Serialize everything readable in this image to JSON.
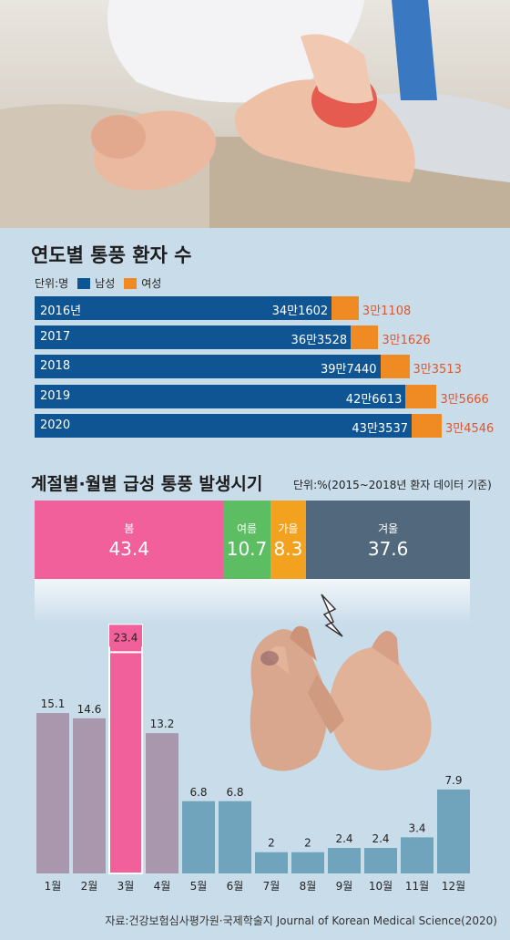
{
  "yearly": {
    "title": "연도별 통풍 환자 수",
    "unit": "단위:명",
    "legend": {
      "male": "남성",
      "female": "여성"
    },
    "colors": {
      "male": "#0f5593",
      "female": "#f08a22",
      "female_text": "#e1562a"
    },
    "rows": [
      {
        "year": "2016년",
        "male": "34만1602",
        "female": "3만1108"
      },
      {
        "year": "2017",
        "male": "36만3528",
        "female": "3만1626"
      },
      {
        "year": "2018",
        "male": "39만7440",
        "female": "3만3513"
      },
      {
        "year": "2019",
        "male": "42만6613",
        "female": "3만5666"
      },
      {
        "year": "2020",
        "male": "43만3537",
        "female": "3만4546"
      }
    ]
  },
  "seasonal": {
    "title": "계절별·월별 급성 통풍 발생시기",
    "unit": "단위:%(2015~2018년 환자 데이터 기준)",
    "seasons": [
      {
        "name": "봄",
        "value": "43.4",
        "color": "#f2609b"
      },
      {
        "name": "여름",
        "value": "10.7",
        "color": "#5cbd63"
      },
      {
        "name": "가을",
        "value": "8.3",
        "color": "#f3a21f"
      },
      {
        "name": "겨울",
        "value": "37.6",
        "color": "#52697d"
      }
    ]
  },
  "source": "자료:건강보험심사평가원·국제학술지 Journal of Korean Medical Science(2020)",
  "chart_data": [
    {
      "type": "bar",
      "orientation": "horizontal",
      "stacked": true,
      "title": "연도별 통풍 환자 수",
      "unit": "단위:명",
      "categories": [
        "2016년",
        "2017",
        "2018",
        "2019",
        "2020"
      ],
      "series": [
        {
          "name": "남성",
          "values": [
            341602,
            363528,
            397440,
            426613,
            433537
          ]
        },
        {
          "name": "여성",
          "values": [
            31108,
            31626,
            33513,
            35666,
            34546
          ]
        }
      ],
      "legend": "top-left"
    },
    {
      "type": "bar",
      "stacked": true,
      "title": "계절별·월별 급성 통풍 발생시기",
      "unit": "단위:%(2015~2018년 환자 데이터 기준)",
      "categories": [
        "봄",
        "여름",
        "가을",
        "겨울"
      ],
      "values": [
        43.4,
        10.7,
        8.3,
        37.6
      ]
    },
    {
      "type": "bar",
      "categories": [
        "1월",
        "2월",
        "3월",
        "4월",
        "5월",
        "6월",
        "7월",
        "8월",
        "9월",
        "10월",
        "11월",
        "12월"
      ],
      "values": [
        15.1,
        14.6,
        23.4,
        13.2,
        6.8,
        6.8,
        2,
        2,
        2.4,
        2.4,
        3.4,
        7.9
      ],
      "labels": [
        "15.1",
        "14.6",
        "23.4",
        "13.2",
        "6.8",
        "6.8",
        "2",
        "2",
        "2.4",
        "2.4",
        "3.4",
        "7.9"
      ],
      "colors": [
        "#a897ad",
        "#a897ad",
        "#f2609b",
        "#a897ad",
        "#6fa4bc",
        "#6fa4bc",
        "#6fa4bc",
        "#6fa4bc",
        "#6fa4bc",
        "#6fa4bc",
        "#6fa4bc",
        "#6fa4bc"
      ],
      "ylim": [
        0,
        25
      ]
    }
  ]
}
